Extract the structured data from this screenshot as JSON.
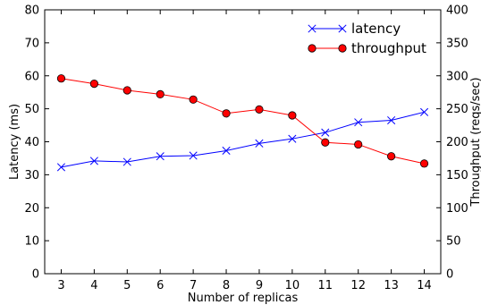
{
  "chart_data": {
    "type": "line",
    "xlabel": "Number of replicas",
    "ylabel_left": "Latency (ms)",
    "ylabel_right": "Throughput (reqs/sec)",
    "x": [
      3,
      4,
      5,
      6,
      7,
      8,
      9,
      10,
      11,
      12,
      13,
      14
    ],
    "xlim": [
      2.5,
      14.5
    ],
    "ylim_left": [
      0,
      80
    ],
    "ylim_right": [
      0,
      400
    ],
    "yticks_left": [
      0,
      10,
      20,
      30,
      40,
      50,
      60,
      70,
      80
    ],
    "yticks_right": [
      0,
      50,
      100,
      150,
      200,
      250,
      300,
      350,
      400
    ],
    "grid": false,
    "legend_position": "top-right",
    "series": [
      {
        "name": "latency",
        "axis": "left",
        "color": "#0000ff",
        "marker": "x",
        "values": [
          32.3,
          34.2,
          33.9,
          35.6,
          35.8,
          37.3,
          39.5,
          40.9,
          42.8,
          45.9,
          46.5,
          49.0
        ]
      },
      {
        "name": "throughput",
        "axis": "right",
        "color": "#ff0000",
        "marker": "circle",
        "values": [
          296,
          288,
          278,
          272,
          264,
          243,
          249,
          240,
          199,
          196,
          178,
          167
        ]
      }
    ]
  }
}
